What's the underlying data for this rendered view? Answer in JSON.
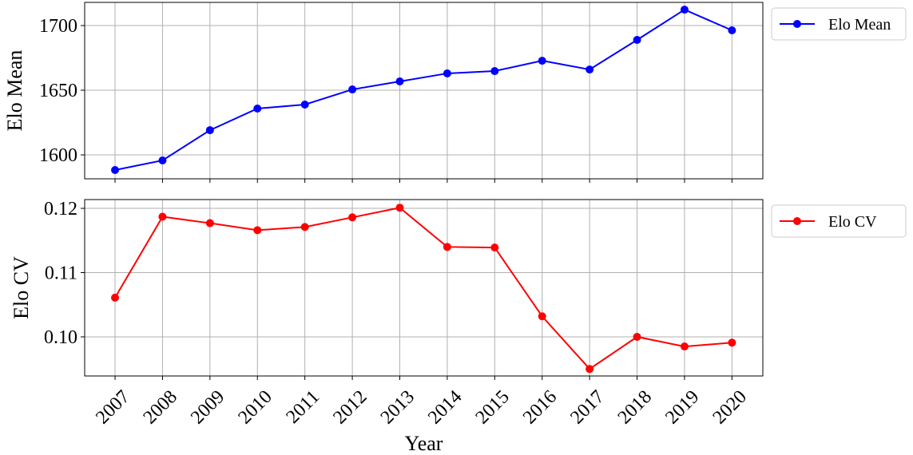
{
  "chart_data": [
    {
      "type": "line",
      "ylabel": "Elo Mean",
      "x": [
        2007,
        2008,
        2009,
        2010,
        2011,
        2012,
        2013,
        2014,
        2015,
        2016,
        2017,
        2018,
        2019,
        2020
      ],
      "series": [
        {
          "name": "Elo Mean",
          "color": "#0000ff",
          "values": [
            1588.3,
            1595.7,
            1619.1,
            1635.8,
            1638.9,
            1650.6,
            1656.8,
            1663,
            1664.8,
            1672.8,
            1666,
            1688.9,
            1712.3,
            1696.3
          ]
        }
      ],
      "xlim": [
        2006.36,
        2020.65
      ],
      "xticks": [
        2007,
        2008,
        2009,
        2010,
        2011,
        2012,
        2013,
        2014,
        2015,
        2016,
        2017,
        2018,
        2019,
        2020
      ],
      "ylim": [
        1581.5,
        1717.9
      ],
      "yticks": [
        1600,
        1650,
        1700
      ],
      "grid": true,
      "legend": "outside upper right"
    },
    {
      "type": "line",
      "ylabel": "Elo CV",
      "xlabel": "Year",
      "x": [
        2007,
        2008,
        2009,
        2010,
        2011,
        2012,
        2013,
        2014,
        2015,
        2016,
        2017,
        2018,
        2019,
        2020
      ],
      "series": [
        {
          "name": "Elo CV",
          "color": "#ff0000",
          "values": [
            0.1061,
            0.1187,
            0.1177,
            0.1166,
            0.1171,
            0.1186,
            0.1201,
            0.114,
            0.1139,
            0.1032,
            0.095,
            0.1,
            0.0985,
            0.0991
          ]
        }
      ],
      "xlim": [
        2006.36,
        2020.65
      ],
      "xticks": [
        2007,
        2008,
        2009,
        2010,
        2011,
        2012,
        2013,
        2014,
        2015,
        2016,
        2017,
        2018,
        2019,
        2020
      ],
      "ylim": [
        0.09391,
        0.12137
      ],
      "yticks": [
        {
          "value": 0.1,
          "label": "0.10"
        },
        0.11,
        0.12
      ],
      "grid": true,
      "legend": "outside upper right"
    }
  ]
}
